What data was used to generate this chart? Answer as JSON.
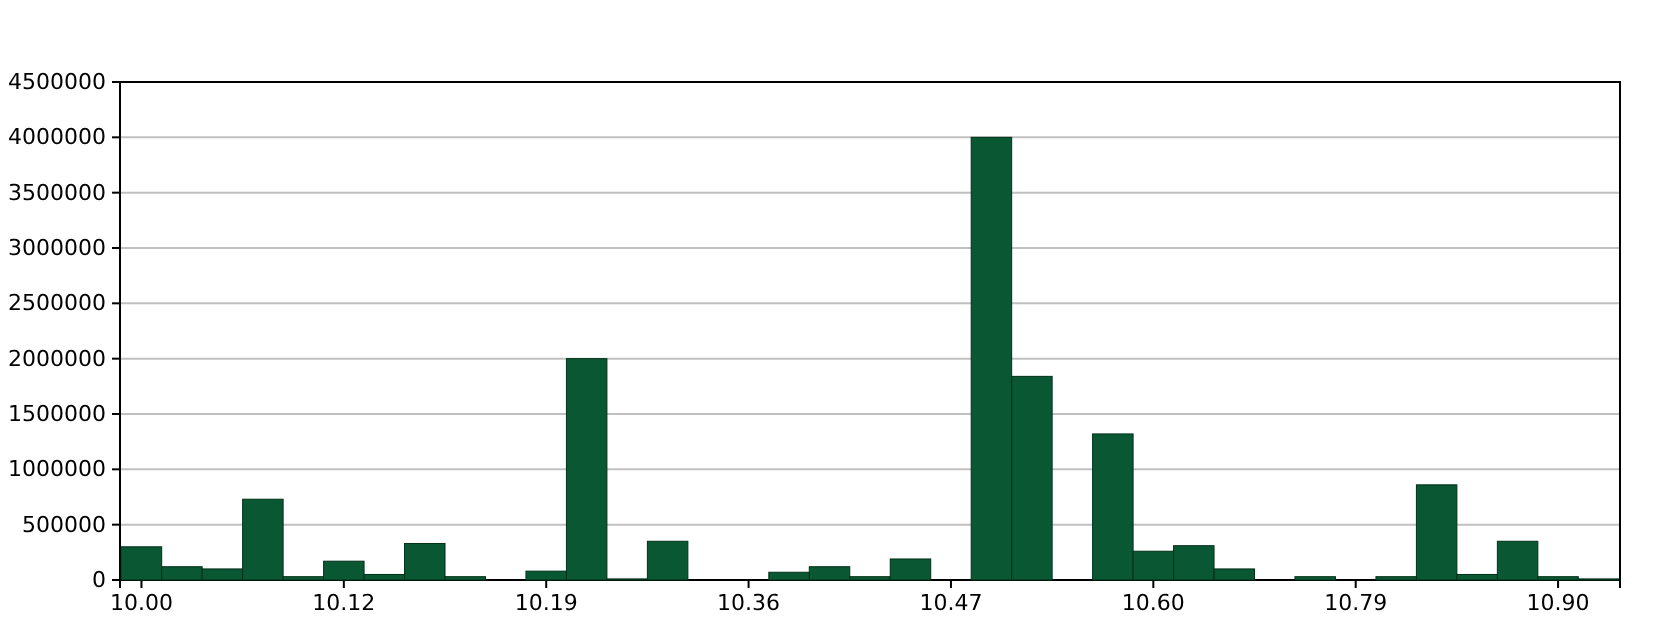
{
  "chart_data": {
    "type": "bar",
    "categories": [
      "10.00",
      null,
      null,
      null,
      null,
      "10.12",
      null,
      null,
      null,
      null,
      "10.19",
      null,
      null,
      null,
      null,
      "10.36",
      null,
      null,
      null,
      null,
      "10.47",
      null,
      null,
      null,
      null,
      "10.60",
      null,
      null,
      null,
      null,
      "10.79",
      null,
      null,
      null,
      null,
      "10.90",
      null
    ],
    "values": [
      300000,
      120000,
      100000,
      730000,
      30000,
      170000,
      50000,
      330000,
      30000,
      0,
      80000,
      2000000,
      10000,
      350000,
      0,
      0,
      70000,
      120000,
      30000,
      190000,
      0,
      4000000,
      1840000,
      0,
      1320000,
      260000,
      310000,
      100000,
      0,
      30000,
      0,
      30000,
      860000,
      50000,
      350000,
      30000,
      10000
    ],
    "color": "#0a5733",
    "ylim": [
      0,
      4500000
    ],
    "yticks": [
      0,
      500000,
      1000000,
      1500000,
      2000000,
      2500000,
      3000000,
      3500000,
      4000000,
      4500000
    ],
    "grid": "y"
  }
}
